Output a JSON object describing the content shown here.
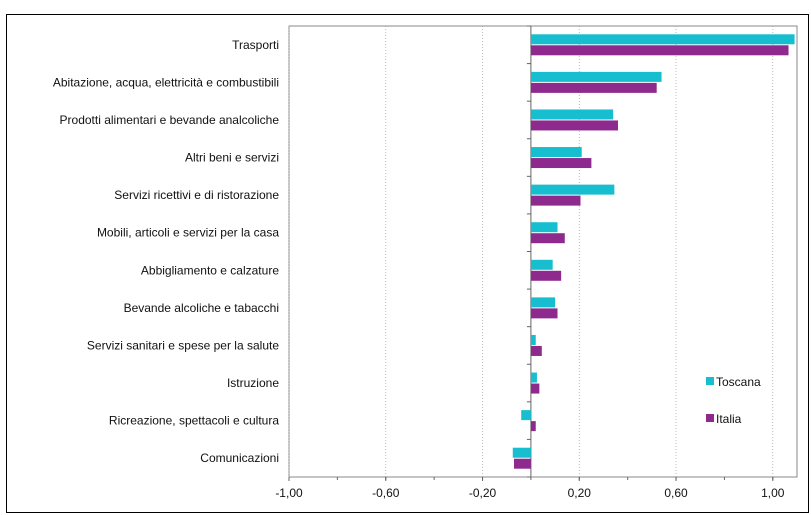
{
  "chart_data": {
    "type": "bar",
    "orientation": "horizontal",
    "categories": [
      "Trasporti",
      "Abitazione, acqua, elettricità e combustibili",
      "Prodotti alimentari e bevande analcoliche",
      "Altri beni e servizi",
      "Servizi ricettivi e di ristorazione",
      "Mobili, articoli e servizi per la casa",
      "Abbigliamento e calzature",
      "Bevande alcoliche e tabacchi",
      "Servizi sanitari e spese per la salute",
      "Istruzione",
      "Ricreazione, spettacoli e cultura",
      "Comunicazioni"
    ],
    "series": [
      {
        "name": "Toscana",
        "color": "#17BECF",
        "values": [
          1.09,
          0.54,
          0.34,
          0.21,
          0.345,
          0.11,
          0.09,
          0.1,
          0.02,
          0.025,
          -0.04,
          -0.075
        ]
      },
      {
        "name": "Italia",
        "color": "#8E2A8E",
        "values": [
          1.065,
          0.52,
          0.36,
          0.25,
          0.205,
          0.14,
          0.125,
          0.11,
          0.045,
          0.035,
          0.02,
          -0.07
        ]
      }
    ],
    "xlim": [
      -1.0,
      1.1
    ],
    "xticks": [
      "-1,00",
      "-0,60",
      "-0,20",
      "0,20",
      "0,60",
      "1,00"
    ],
    "xtick_values": [
      -1.0,
      -0.6,
      -0.2,
      0.2,
      0.6,
      1.0
    ],
    "grid": "vertical dotted",
    "legend_position": "bottom-right inside"
  }
}
